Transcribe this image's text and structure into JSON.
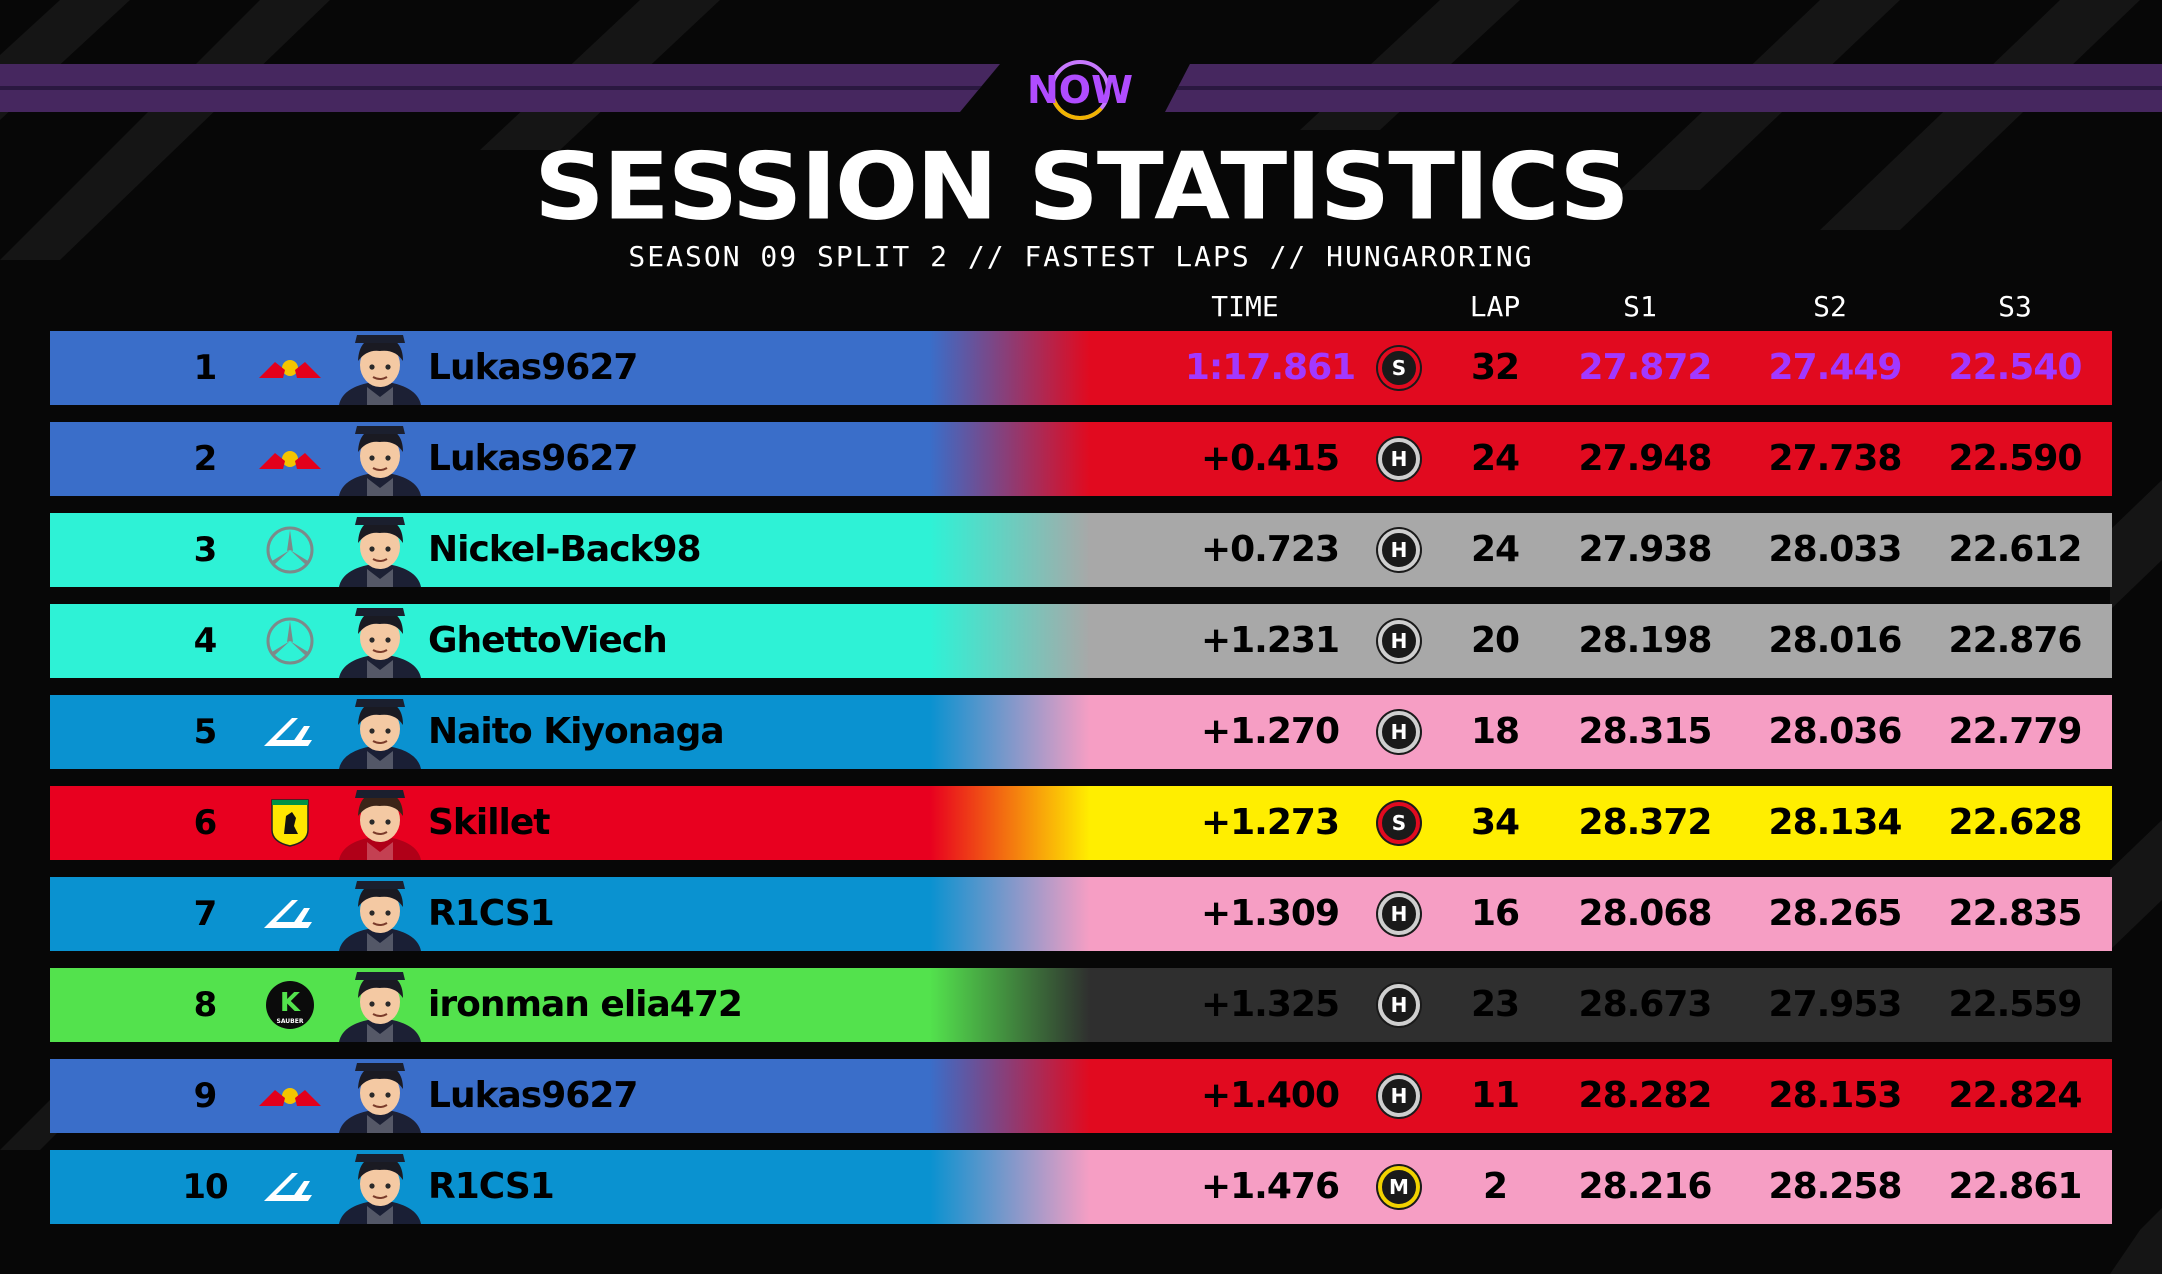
{
  "header": {
    "logo_text": "NOW",
    "title": "SESSION STATISTICS",
    "subtitle": "SEASON 09 SPLIT 2 // FASTEST LAPS // HUNGARORING"
  },
  "columns": {
    "time": "TIME",
    "lap": "LAP",
    "s1": "S1",
    "s2": "S2",
    "s3": "S3"
  },
  "colors": {
    "redbull_blue": "#3a6ec9",
    "mercedes_teal": "#2ef2d6",
    "alpine_blue": "#0a92d0",
    "ferrari_red": "#e8001f",
    "sauber_green": "#53e24d",
    "right_red": "#e10a1f",
    "right_grey": "#a8a8a8",
    "right_pink": "#f69ec4",
    "right_yellow": "#ffee00",
    "right_dark": "#2f2f2f",
    "fastest_purple": "#a238ff"
  },
  "rows": [
    {
      "pos": "1",
      "team": "redbull-logo",
      "driver": "Lukas9627",
      "time": "1:17.861",
      "tyre": "S",
      "lap": "32",
      "s1": "27.872",
      "s2": "27.449",
      "s3": "22.540",
      "left_color": "#3a6ec9",
      "right_color": "#e10a1f",
      "fastest": true
    },
    {
      "pos": "2",
      "team": "redbull-logo",
      "driver": "Lukas9627",
      "time": "+0.415",
      "tyre": "H",
      "lap": "24",
      "s1": "27.948",
      "s2": "27.738",
      "s3": "22.590",
      "left_color": "#3a6ec9",
      "right_color": "#e10a1f"
    },
    {
      "pos": "3",
      "team": "mercedes-logo",
      "driver": "Nickel-Back98",
      "time": "+0.723",
      "tyre": "H",
      "lap": "24",
      "s1": "27.938",
      "s2": "28.033",
      "s3": "22.612",
      "left_color": "#2ef2d6",
      "right_color": "#a8a8a8"
    },
    {
      "pos": "4",
      "team": "mercedes-logo",
      "driver": "GhettoViech",
      "time": "+1.231",
      "tyre": "H",
      "lap": "20",
      "s1": "28.198",
      "s2": "28.016",
      "s3": "22.876",
      "left_color": "#2ef2d6",
      "right_color": "#a8a8a8"
    },
    {
      "pos": "5",
      "team": "alpine-logo",
      "driver": "Naito Kiyonaga",
      "time": "+1.270",
      "tyre": "H",
      "lap": "18",
      "s1": "28.315",
      "s2": "28.036",
      "s3": "22.779",
      "left_color": "#0a92d0",
      "right_color": "#f69ec4"
    },
    {
      "pos": "6",
      "team": "ferrari-logo",
      "driver": "Skillet",
      "time": "+1.273",
      "tyre": "S",
      "lap": "34",
      "s1": "28.372",
      "s2": "28.134",
      "s3": "22.628",
      "left_color": "#e8001f",
      "right_color": "#ffee00"
    },
    {
      "pos": "7",
      "team": "alpine-logo",
      "driver": "R1CS1",
      "time": "+1.309",
      "tyre": "H",
      "lap": "16",
      "s1": "28.068",
      "s2": "28.265",
      "s3": "22.835",
      "left_color": "#0a92d0",
      "right_color": "#f69ec4"
    },
    {
      "pos": "8",
      "team": "sauber-logo",
      "driver": "ironman elia472",
      "time": "+1.325",
      "tyre": "H",
      "lap": "23",
      "s1": "28.673",
      "s2": "27.953",
      "s3": "22.559",
      "left_color": "#53e24d",
      "right_color": "#2f2f2f"
    },
    {
      "pos": "9",
      "team": "redbull-logo",
      "driver": "Lukas9627",
      "time": "+1.400",
      "tyre": "H",
      "lap": "11",
      "s1": "28.282",
      "s2": "28.153",
      "s3": "22.824",
      "left_color": "#3a6ec9",
      "right_color": "#e10a1f"
    },
    {
      "pos": "10",
      "team": "alpine-logo",
      "driver": "R1CS1",
      "time": "+1.476",
      "tyre": "M",
      "lap": "2",
      "s1": "28.216",
      "s2": "28.258",
      "s3": "22.861",
      "left_color": "#0a92d0",
      "right_color": "#f69ec4"
    }
  ],
  "team_logos": {
    "redbull-logo": {
      "label": ""
    },
    "mercedes-logo": {
      "label": ""
    },
    "alpine-logo": {
      "label": ""
    },
    "ferrari-logo": {
      "label": ""
    },
    "sauber-logo": {
      "label": "K",
      "sub": "SAUBER"
    }
  }
}
